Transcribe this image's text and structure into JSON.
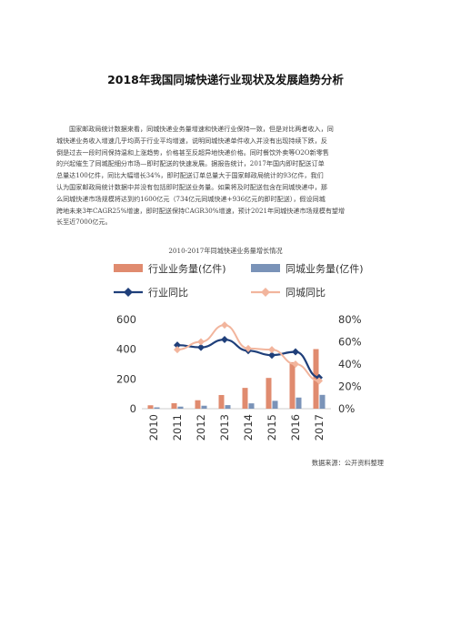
{
  "document": {
    "title": "2018年我国同城快递行业现状及发展趋势分析",
    "paragraph_lines": [
      "国家邮政局统计数据来看，同城快递业务量增速和快递行业保持一致，但是对比两者收入，同",
      "城快递业务收入增速几乎均高于行业平均增速，说明同城快递单件收入并没有出现持续下跌，反",
      "倒是过去一段时间保持温和上涨趋势，价格甚至反超异地快递价格。同时餐饮外卖等O2O新零售",
      "的兴起催生了同城配细分市场—即时配送的快速发展。据报告统计，2017年国内即时配送订单",
      "总量达100亿件，同比大幅增长34%，即时配送订单总量大于国家邮政局统计的93亿件，我们",
      "认为国家邮政局统计数据中并没有包括即时配送业务量。如果将及时配送包含在同城快递中，那",
      "么同城快递市场规模将达到约1600亿元（734亿元同城快递+936亿元的即时配送），假设同城",
      "跨地未来3年CAGR25%增速，即时配送保持CAGR30%增速，预计2021年同城快递市场规模有望增",
      "长至近7000亿元。"
    ],
    "chart_caption": "2010-2017年同城快递业务量增长情况",
    "source": "数据来源：公开资料整理"
  },
  "chart_data": {
    "type": "bar",
    "categories": [
      "2010",
      "2011",
      "2012",
      "2013",
      "2014",
      "2015",
      "2016",
      "2017"
    ],
    "series": [
      {
        "name": "行业业务量(亿件)",
        "kind": "bar",
        "axis": "left",
        "color": "#e08b6f",
        "values": [
          23,
          37,
          57,
          92,
          140,
          207,
          313,
          401
        ]
      },
      {
        "name": "同城业务量(亿件)",
        "kind": "bar",
        "axis": "left",
        "color": "#7a93b8",
        "values": [
          9,
          14,
          20,
          24,
          36,
          53,
          75,
          93
        ]
      },
      {
        "name": "行业同比",
        "kind": "line",
        "axis": "right",
        "color": "#1f3f7a",
        "values": [
          null,
          57,
          55,
          62,
          52,
          48,
          51,
          28
        ]
      },
      {
        "name": "同城同比",
        "kind": "line",
        "axis": "right",
        "color": "#f2b59d",
        "values": [
          null,
          53,
          60,
          75,
          54,
          53,
          40,
          25
        ]
      }
    ],
    "left_axis": {
      "ylim": [
        0,
        600
      ],
      "ticks": [
        "0",
        "200",
        "400",
        "600"
      ]
    },
    "right_axis": {
      "ylim": [
        0,
        80
      ],
      "ticks": [
        "0%",
        "20%",
        "40%",
        "60%",
        "80%"
      ]
    },
    "legend_position": "top",
    "grid": false
  }
}
